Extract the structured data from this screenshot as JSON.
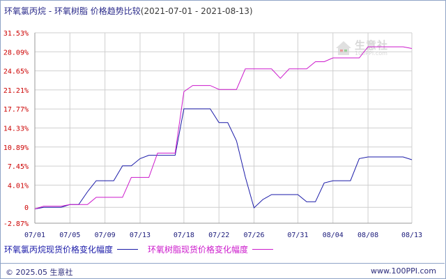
{
  "header": {
    "title": "环氧氯丙烷 - 环氧树脂 价格趋势比较",
    "date_range": "(2021-07-01 - 2021-08-13)"
  },
  "watermark": {
    "text": "生意社",
    "url": "100PPI.com"
  },
  "footer": {
    "copyright": "© 2025.05 生意社",
    "url": "www.100PPI.com"
  },
  "colors": {
    "series1": "#1a1aa8",
    "series2": "#cc19cc",
    "grid": "#cfcfcf",
    "ytick": "#cc0000",
    "xtick": "#1a1a7a"
  },
  "chart_data": {
    "type": "line",
    "ylim": [
      -2.87,
      31.53
    ],
    "y_ticks": [
      31.53,
      28.09,
      24.65,
      21.21,
      17.77,
      14.33,
      10.89,
      7.45,
      4.01,
      0,
      -2.87
    ],
    "y_tick_labels": [
      "31.53%",
      "28.09%",
      "24.65%",
      "21.21%",
      "17.77%",
      "14.33%",
      "10.89%",
      "7.45%",
      "4.01%",
      "0",
      "-2.87%"
    ],
    "x_tick_labels": [
      "07/01",
      "07/05",
      "07/09",
      "07/13",
      "07/18",
      "07/22",
      "07/26",
      "07/31",
      "08/04",
      "08/08",
      "08/13"
    ],
    "x_tick_days": [
      0,
      4,
      8,
      12,
      17,
      21,
      25,
      30,
      34,
      38,
      43
    ],
    "series": [
      {
        "name": "环氧氯丙烷现货价格变化幅度",
        "days": [
          0,
          1,
          3,
          4,
          5,
          6,
          7,
          8,
          9,
          10,
          11,
          12,
          13,
          14,
          15,
          16,
          17,
          18,
          19,
          20,
          21,
          22,
          23,
          24,
          25,
          26,
          27,
          28,
          29,
          30,
          31,
          32,
          33,
          34,
          35,
          36,
          37,
          38,
          39,
          40,
          41,
          42,
          43
        ],
        "values": [
          -0.3,
          0,
          0,
          0.5,
          0.5,
          2.8,
          4.8,
          4.8,
          4.8,
          7.5,
          7.5,
          8.8,
          9.4,
          9.4,
          9.4,
          9.4,
          17.8,
          17.8,
          17.8,
          17.8,
          15.3,
          15.3,
          12.0,
          5.5,
          -0.1,
          1.4,
          2.3,
          2.3,
          2.3,
          2.3,
          1.0,
          1.0,
          4.4,
          4.8,
          4.8,
          4.8,
          8.8,
          9.1,
          9.1,
          9.1,
          9.1,
          9.1,
          8.6
        ]
      },
      {
        "name": "环氧树脂现货价格变化幅度",
        "days": [
          0,
          1,
          3,
          4,
          5,
          6,
          7,
          8,
          9,
          10,
          11,
          12,
          13,
          14,
          15,
          16,
          17,
          18,
          19,
          20,
          21,
          22,
          23,
          24,
          25,
          26,
          27,
          28,
          29,
          30,
          31,
          32,
          33,
          34,
          35,
          36,
          37,
          38,
          39,
          40,
          41,
          42,
          43
        ],
        "values": [
          -0.3,
          0.2,
          0.2,
          0.5,
          0.5,
          0.5,
          1.8,
          1.8,
          1.8,
          1.8,
          5.4,
          5.4,
          5.4,
          9.8,
          9.8,
          9.8,
          20.9,
          22.0,
          22.0,
          22.0,
          21.3,
          21.3,
          21.3,
          25.0,
          25.0,
          25.0,
          25.0,
          23.3,
          25.0,
          25.0,
          25.0,
          26.3,
          26.3,
          27.0,
          27.0,
          27.0,
          27.0,
          29.0,
          29.0,
          29.0,
          29.0,
          29.0,
          28.7
        ]
      }
    ]
  }
}
